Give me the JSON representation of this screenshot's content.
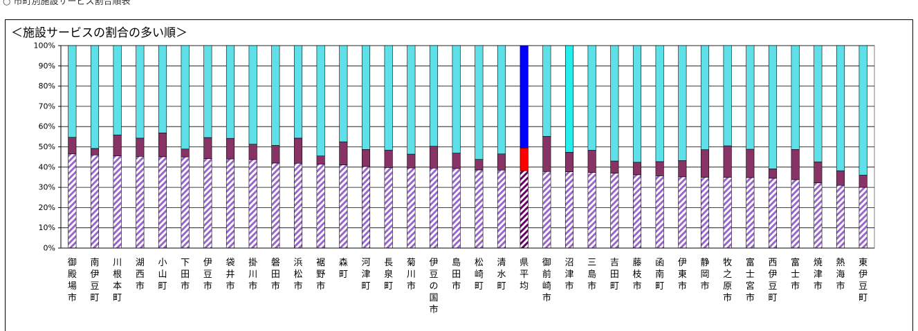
{
  "caption": "○ 市町別施設サービス割合順表",
  "chart_data": {
    "type": "bar",
    "stacked": true,
    "title": "＜施設サービスの割合の多い順＞",
    "ylim": [
      0,
      100
    ],
    "yticks": [
      "0%",
      "10%",
      "20%",
      "30%",
      "40%",
      "50%",
      "60%",
      "70%",
      "80%",
      "90%",
      "100%"
    ],
    "categories": [
      "御殿場市",
      "南伊豆町",
      "川根本町",
      "湖西市",
      "小山町",
      "下田市",
      "伊豆市",
      "袋井市",
      "掛川市",
      "磐田市",
      "浜松市",
      "裾野市",
      "森町",
      "河津町",
      "長泉町",
      "菊川市",
      "伊豆の国市",
      "島田市",
      "松崎町",
      "清水町",
      "県平均",
      "御前崎市",
      "沼津市",
      "三島市",
      "吉田町",
      "藤枝市",
      "函南町",
      "伊東市",
      "静岡市",
      "牧之原市",
      "富士宮市",
      "西伊豆町",
      "富士市",
      "焼津市",
      "熱海市",
      "東伊豆町"
    ],
    "highlight_index": 20,
    "series": [
      {
        "values": [
          46.5,
          46,
          45.5,
          45.3,
          45.1,
          45,
          44.2,
          44,
          43.7,
          42,
          41.9,
          41.5,
          41.1,
          40.3,
          39.8,
          39.6,
          39.5,
          39.3,
          38.6,
          38.5,
          38.2,
          37.8,
          37.7,
          37.3,
          37,
          36.2,
          35.7,
          35.2,
          35,
          34.9,
          34.8,
          34.5,
          33.8,
          32.2,
          31,
          30
        ]
      },
      {
        "values": [
          8.2,
          3.2,
          10.4,
          9,
          11.8,
          3.9,
          10.4,
          10.2,
          7.6,
          8.7,
          12.4,
          4,
          11.4,
          8.4,
          8.6,
          6.8,
          10.8,
          7.6,
          5.2,
          8,
          11.3,
          17.4,
          9.6,
          11,
          6,
          6.2,
          7,
          8,
          13.6,
          15.6,
          14,
          4.6,
          14.9,
          10.4,
          7.2,
          6
        ]
      },
      {
        "values": [
          45.3,
          50.8,
          44.1,
          45.7,
          43.1,
          51.1,
          45.4,
          45.8,
          48.7,
          49.3,
          45.7,
          54.5,
          47.5,
          51.3,
          51.6,
          53.6,
          49.7,
          53.1,
          56.2,
          53.5,
          50.5,
          44.8,
          52.7,
          51.7,
          57,
          57.6,
          57.3,
          56.8,
          51.4,
          49.5,
          51.2,
          60.9,
          51.3,
          57.4,
          61.8,
          64
        ]
      }
    ],
    "colors": {
      "hatched": "#9966cc",
      "middle": "#883366",
      "top": "#5ee0e8",
      "top_highlight": "#22eeee",
      "avg_hatched": "#660066",
      "avg_middle": "#ff0000",
      "avg_top": "#0000ff"
    },
    "grid": true
  }
}
